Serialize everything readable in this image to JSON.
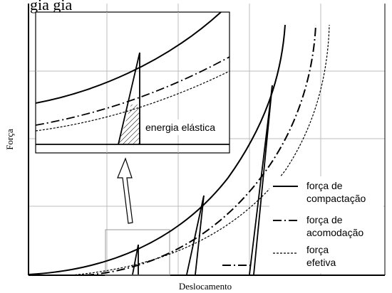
{
  "figure": {
    "top_text": "gia           gia",
    "ylabel": "Força",
    "xlabel": "Deslocamento",
    "inset_label": "energia elástica"
  },
  "legend": [
    {
      "label_line1": "força de",
      "label_line2": "compactação",
      "style": "solid"
    },
    {
      "label_line1": "força de",
      "label_line2": "acomodação",
      "style": "dashdot"
    },
    {
      "label_line1": "força",
      "label_line2": "efetiva",
      "style": "dotted"
    }
  ],
  "colors": {
    "line": "#000000",
    "grid": "#bdbdbd",
    "hatch": "#000000",
    "background": "#ffffff"
  }
}
